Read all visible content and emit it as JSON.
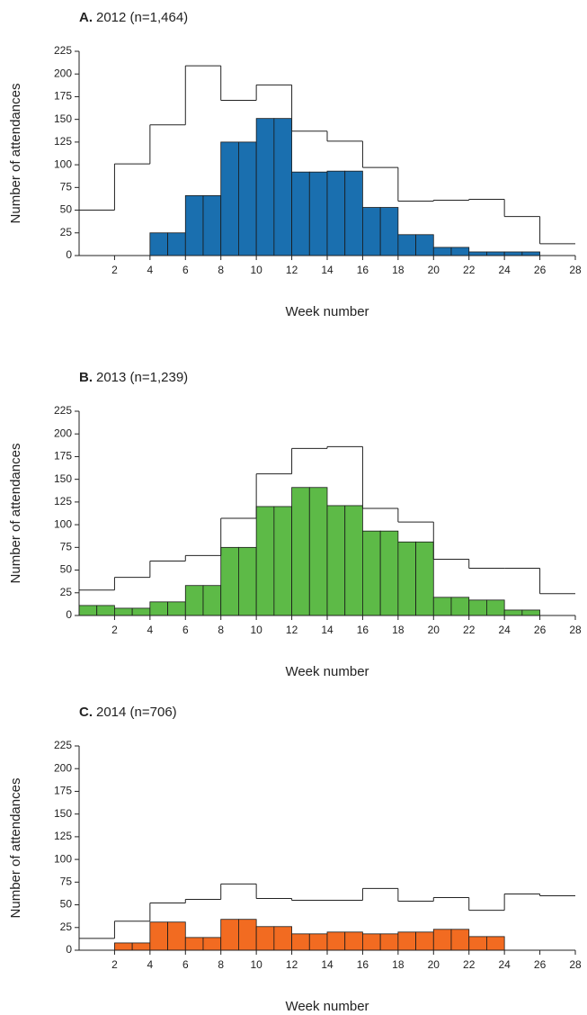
{
  "chart_data": [
    {
      "type": "histogram",
      "label": "A.",
      "title": "2012 (n=1,464)",
      "xlabel": "Week number",
      "ylabel": "Number of attendances",
      "color": "#1a6faf",
      "bins": [
        0,
        1,
        2,
        3,
        4,
        5,
        6,
        7,
        8,
        9,
        10,
        11,
        12,
        13,
        14,
        15,
        16,
        17,
        18,
        19,
        20,
        21,
        22,
        23,
        24,
        25,
        26,
        27,
        28
      ],
      "values": [
        0,
        0,
        0,
        0,
        25,
        25,
        66,
        66,
        125,
        125,
        151,
        151,
        92,
        92,
        93,
        93,
        53,
        53,
        23,
        23,
        9,
        9,
        4,
        4,
        4,
        4,
        0,
        0
      ],
      "outline": {
        "x": [
          0,
          2,
          4,
          6,
          8,
          10,
          12,
          14,
          16,
          18,
          20,
          22,
          24,
          26,
          28
        ],
        "values": [
          50,
          101,
          144,
          209,
          171,
          188,
          137,
          126,
          97,
          60,
          61,
          62,
          43,
          13
        ]
      },
      "xlim": [
        0,
        28
      ],
      "ylim": [
        0,
        225
      ],
      "xticks": [
        2,
        4,
        6,
        8,
        10,
        12,
        14,
        16,
        18,
        20,
        22,
        24,
        26,
        28
      ],
      "yticks": [
        0,
        25,
        50,
        75,
        100,
        125,
        150,
        175,
        200,
        225
      ]
    },
    {
      "type": "histogram",
      "label": "B.",
      "title": "2013 (n=1,239)",
      "xlabel": "Week number",
      "ylabel": "Number of attendances",
      "color": "#5dba47",
      "bins": [
        0,
        1,
        2,
        3,
        4,
        5,
        6,
        7,
        8,
        9,
        10,
        11,
        12,
        13,
        14,
        15,
        16,
        17,
        18,
        19,
        20,
        21,
        22,
        23,
        24,
        25,
        26,
        27,
        28
      ],
      "values": [
        11,
        11,
        8,
        8,
        15,
        15,
        33,
        33,
        75,
        75,
        120,
        120,
        141,
        141,
        121,
        121,
        93,
        93,
        81,
        81,
        20,
        20,
        17,
        17,
        6,
        6,
        0,
        0
      ],
      "outline": {
        "x": [
          0,
          2,
          4,
          6,
          8,
          10,
          12,
          14,
          16,
          18,
          20,
          22,
          24,
          26,
          28
        ],
        "values": [
          28,
          42,
          60,
          66,
          107,
          156,
          184,
          186,
          118,
          103,
          62,
          52,
          52,
          24
        ]
      },
      "xlim": [
        0,
        28
      ],
      "ylim": [
        0,
        225
      ],
      "xticks": [
        2,
        4,
        6,
        8,
        10,
        12,
        14,
        16,
        18,
        20,
        22,
        24,
        26,
        28
      ],
      "yticks": [
        0,
        25,
        50,
        75,
        100,
        125,
        150,
        175,
        200,
        225
      ]
    },
    {
      "type": "histogram",
      "label": "C.",
      "title": "2014 (n=706)",
      "xlabel": "Week number",
      "ylabel": "Number of attendances",
      "color": "#f26b21",
      "bins": [
        0,
        1,
        2,
        3,
        4,
        5,
        6,
        7,
        8,
        9,
        10,
        11,
        12,
        13,
        14,
        15,
        16,
        17,
        18,
        19,
        20,
        21,
        22,
        23,
        24,
        25,
        26,
        27,
        28
      ],
      "values": [
        0,
        0,
        8,
        8,
        31,
        31,
        14,
        14,
        34,
        34,
        26,
        26,
        18,
        18,
        20,
        20,
        18,
        18,
        20,
        20,
        23,
        23,
        15,
        15,
        0,
        0,
        0,
        0
      ],
      "outline": {
        "x": [
          0,
          2,
          4,
          6,
          8,
          10,
          12,
          14,
          16,
          18,
          20,
          22,
          24,
          26,
          28
        ],
        "values": [
          13,
          32,
          52,
          56,
          73,
          57,
          55,
          55,
          68,
          54,
          58,
          44,
          62,
          60
        ]
      },
      "xlim": [
        0,
        28
      ],
      "ylim": [
        0,
        225
      ],
      "xticks": [
        2,
        4,
        6,
        8,
        10,
        12,
        14,
        16,
        18,
        20,
        22,
        24,
        26,
        28
      ],
      "yticks": [
        0,
        25,
        50,
        75,
        100,
        125,
        150,
        175,
        200,
        225
      ]
    }
  ]
}
